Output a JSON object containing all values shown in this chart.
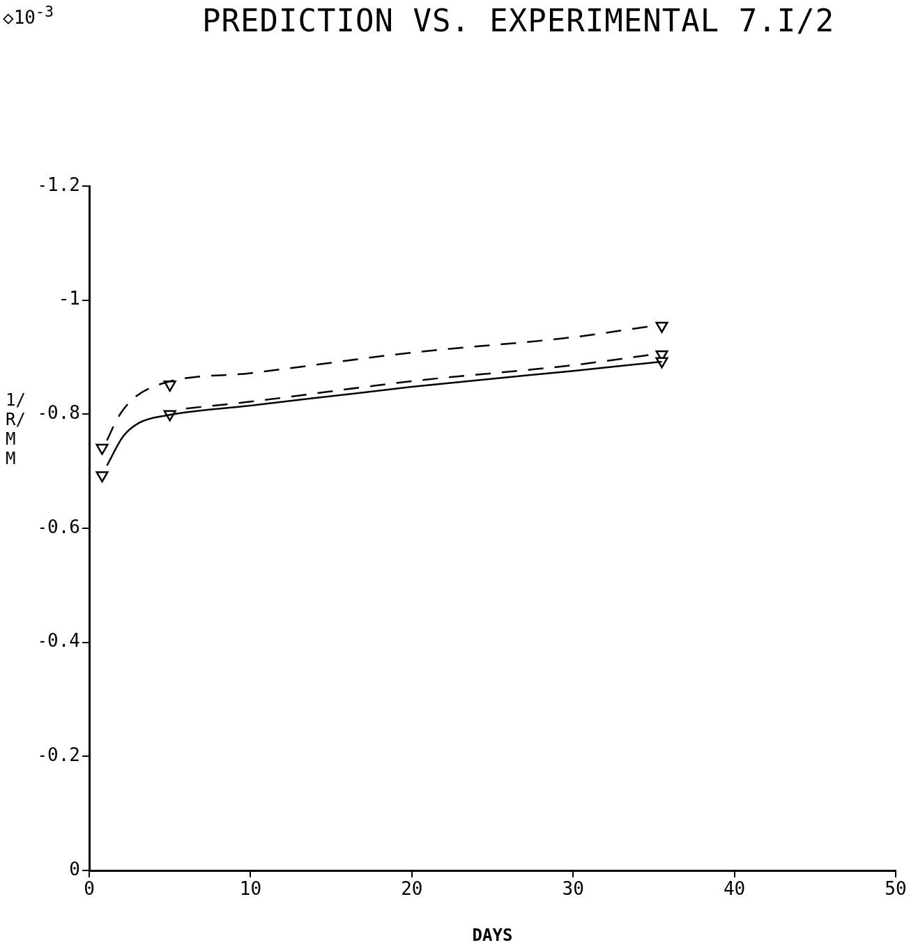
{
  "chart_data": {
    "type": "line",
    "title": "PREDICTION VS. EXPERIMENTAL 7.I/2",
    "xlabel": "DAYS",
    "ylabel": "1/R/MM",
    "annotations": [
      "◇10$^{-3}$"
    ],
    "xlim": [
      0,
      50
    ],
    "xticks": [
      0,
      10,
      20,
      30,
      40,
      50
    ],
    "ylim": [
      0,
      -1.2
    ],
    "yticks": [
      0,
      -0.2,
      -0.4,
      -0.6,
      -0.8,
      -1,
      -1.2
    ],
    "grid": false,
    "legend": false,
    "series": [
      {
        "color": "#000000",
        "line_style": "solid",
        "marker": "none",
        "x": [
          1.1,
          2.1,
          3.1,
          4.8,
          10,
          20,
          30,
          35.5
        ],
        "values": [
          -0.71,
          -0.761,
          -0.785,
          -0.798,
          -0.815,
          -0.848,
          -0.876,
          -0.892
        ]
      },
      {
        "color": "#000000",
        "line_style": "dashed",
        "marker": "none",
        "x": [
          6,
          10,
          20,
          30,
          35
        ],
        "values": [
          -0.81,
          -0.822,
          -0.858,
          -0.886,
          -0.905
        ]
      },
      {
        "color": "#000000",
        "line_style": "dashed",
        "marker": "none",
        "x": [
          1.1,
          1.8,
          2.8,
          4.8,
          10,
          20,
          30,
          35
        ],
        "values": [
          -0.754,
          -0.795,
          -0.829,
          -0.856,
          -0.872,
          -0.908,
          -0.935,
          -0.955
        ]
      },
      {
        "type": "scatter",
        "color": "#000000",
        "marker": "triangle",
        "x": [
          0.8,
          0.8,
          5,
          5,
          35.5,
          35.5,
          35.5
        ],
        "values": [
          -0.741,
          -0.693,
          -0.852,
          -0.8,
          -0.955,
          -0.905,
          -0.893
        ]
      }
    ]
  }
}
